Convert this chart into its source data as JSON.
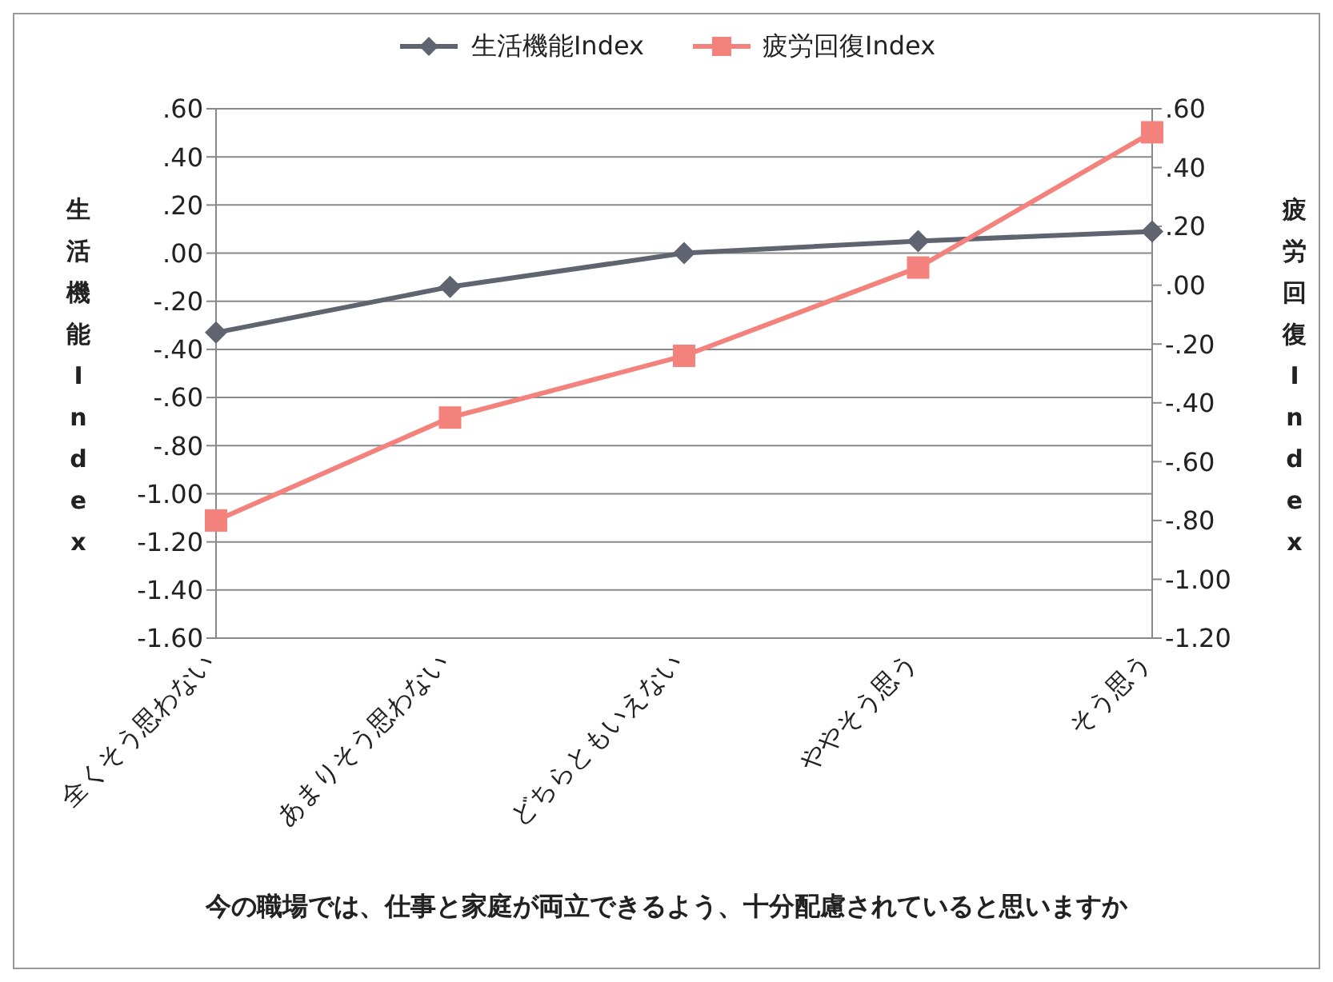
{
  "chart_data": {
    "type": "line",
    "xlabel": "今の職場では、仕事と家庭が両立できるよう、十分配慮されていると思いますか",
    "ylabel": "生活機能Index",
    "y2label": "疲労回復Index",
    "categories": [
      "全くそう思わない",
      "あまりそう思わない",
      "どちらともいえない",
      "ややそう思う",
      "そう思う"
    ],
    "series": [
      {
        "name": "生活機能Index",
        "color": "#5f6470",
        "marker": "diamond",
        "values": [
          -0.33,
          -0.14,
          0.0,
          0.05,
          0.09
        ]
      },
      {
        "name": "疲労回復Index",
        "color": "#f4827c",
        "marker": "square",
        "axis": "y2",
        "values": [
          -0.8,
          -0.45,
          -0.24,
          0.06,
          0.52
        ]
      }
    ],
    "ylim": [
      -1.6,
      0.6
    ],
    "yticks": [
      {
        "value": 0.6,
        "label": ".60"
      },
      {
        "value": 0.4,
        "label": ".40"
      },
      {
        "value": 0.2,
        "label": ".20"
      },
      {
        "value": 0,
        "label": ".00"
      },
      {
        "value": -0.2,
        "label": "-.20"
      },
      {
        "value": -0.4,
        "label": "-.40"
      },
      {
        "value": -0.6,
        "label": "-.60"
      },
      {
        "value": -0.8,
        "label": "-.80"
      },
      {
        "value": -1.0,
        "label": "-1.00"
      },
      {
        "value": -1.2,
        "label": "-1.20"
      },
      {
        "value": -1.4,
        "label": "-1.40"
      },
      {
        "value": -1.6,
        "label": "-1.60"
      }
    ],
    "y2lim": [
      -1.2,
      0.6
    ],
    "y2ticks": [
      {
        "value": 0.6,
        "label": ".60"
      },
      {
        "value": 0.4,
        "label": ".40"
      },
      {
        "value": 0.2,
        "label": ".20"
      },
      {
        "value": 0,
        "label": ".00"
      },
      {
        "value": -0.2,
        "label": "-.20"
      },
      {
        "value": -0.4,
        "label": "-.40"
      },
      {
        "value": -0.6,
        "label": "-.60"
      },
      {
        "value": -0.8,
        "label": "-.80"
      },
      {
        "value": -1.0,
        "label": "-1.00"
      },
      {
        "value": -1.2,
        "label": "-1.20"
      }
    ],
    "grid": "y",
    "legend": "top",
    "line_style": "solid"
  }
}
